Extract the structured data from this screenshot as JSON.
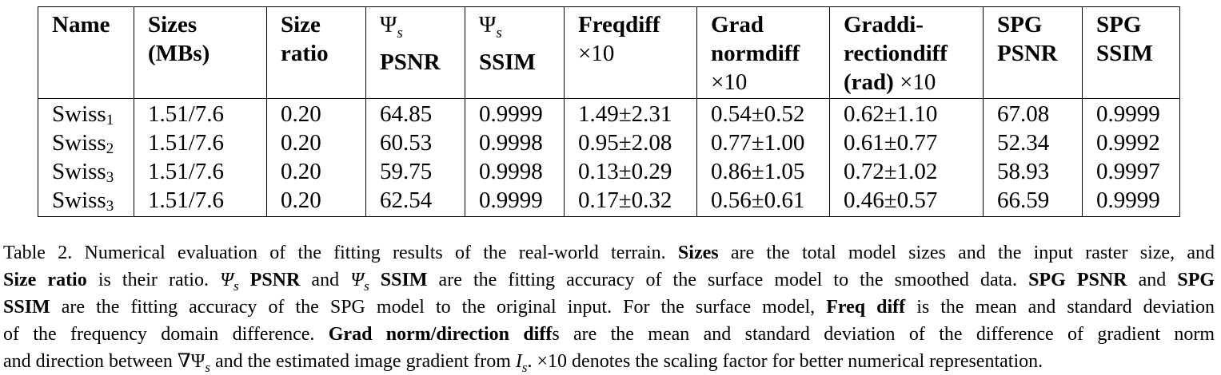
{
  "table": {
    "headers": [
      {
        "lines": [
          "Name"
        ]
      },
      {
        "lines": [
          "Sizes",
          "(MBs)"
        ]
      },
      {
        "lines": [
          "Size",
          "ratio"
        ]
      },
      {
        "sym": "Ψ",
        "sub": "s",
        "lines": [
          "PSNR"
        ]
      },
      {
        "sym": "Ψ",
        "sub": "s",
        "lines": [
          "SSIM"
        ]
      },
      {
        "lines": [
          "Freq diff",
          "×10"
        ]
      },
      {
        "lines": [
          "Grad",
          "norm diff",
          "×10"
        ]
      },
      {
        "lines": [
          "Grad di-",
          "rection diff",
          "(rad) ×10"
        ]
      },
      {
        "lines": [
          "SPG",
          "PSNR"
        ]
      },
      {
        "lines": [
          "SPG",
          "SSIM"
        ]
      }
    ],
    "rows": [
      {
        "name": "Swiss",
        "sub": "1",
        "cells": [
          "1.51/7.6",
          "0.20",
          "64.85",
          "0.9999",
          "1.49±2.31",
          "0.54±0.52",
          "0.62±1.10",
          "67.08",
          "0.9999"
        ]
      },
      {
        "name": "Swiss",
        "sub": "2",
        "cells": [
          "1.51/7.6",
          "0.20",
          "60.53",
          "0.9998",
          "0.95±2.08",
          "0.77±1.00",
          "0.61±0.77",
          "52.34",
          "0.9992"
        ]
      },
      {
        "name": "Swiss",
        "sub": "3",
        "cells": [
          "1.51/7.6",
          "0.20",
          "59.75",
          "0.9998",
          "0.13±0.29",
          "0.86±1.05",
          "0.72±1.02",
          "58.93",
          "0.9997"
        ]
      },
      {
        "name": "Swiss",
        "sub": "3",
        "cells": [
          "1.51/7.6",
          "0.20",
          "62.54",
          "0.9999",
          "0.17±0.32",
          "0.56±0.61",
          "0.46±0.57",
          "66.59",
          "0.9999"
        ]
      }
    ]
  },
  "caption": {
    "lines": [
      [
        {
          "t": "Table 2. Numerical evaluation of the fitting results of the real-world terrain. "
        },
        {
          "t": "Sizes",
          "b": true
        },
        {
          "t": " are the total model sizes and the input raster size, and"
        }
      ],
      [
        {
          "t": "Size ratio",
          "b": true
        },
        {
          "t": " is their ratio. "
        },
        {
          "t": "Ψ",
          "i": true
        },
        {
          "t": "s",
          "i": true,
          "sub": true
        },
        {
          "t": " "
        },
        {
          "t": "PSNR",
          "b": true
        },
        {
          "t": " and "
        },
        {
          "t": "Ψ",
          "i": true
        },
        {
          "t": "s",
          "i": true,
          "sub": true
        },
        {
          "t": " "
        },
        {
          "t": "SSIM",
          "b": true
        },
        {
          "t": " are the fitting accuracy of the surface model to the smoothed data. "
        },
        {
          "t": "SPG PSNR",
          "b": true
        },
        {
          "t": " and "
        },
        {
          "t": "SPG",
          "b": true
        }
      ],
      [
        {
          "t": "SSIM",
          "b": true
        },
        {
          "t": " are the fitting accuracy of the SPG model to the original input. For the surface model, "
        },
        {
          "t": "Freq diff",
          "b": true
        },
        {
          "t": " is the mean and standard deviation"
        }
      ],
      [
        {
          "t": "of the frequency domain difference. "
        },
        {
          "t": "Grad norm/direction diff",
          "b": true
        },
        {
          "t": "s are the mean and standard deviation of the difference of gradient norm"
        }
      ],
      [
        {
          "t": "and direction between ∇Ψ"
        },
        {
          "t": "s",
          "i": true,
          "sub": true
        },
        {
          "t": " and the estimated image gradient from "
        },
        {
          "t": "I",
          "i": true
        },
        {
          "t": "s",
          "i": true,
          "sub": true
        },
        {
          "t": ". ×10 denotes the scaling factor for better numerical representation."
        }
      ]
    ]
  }
}
